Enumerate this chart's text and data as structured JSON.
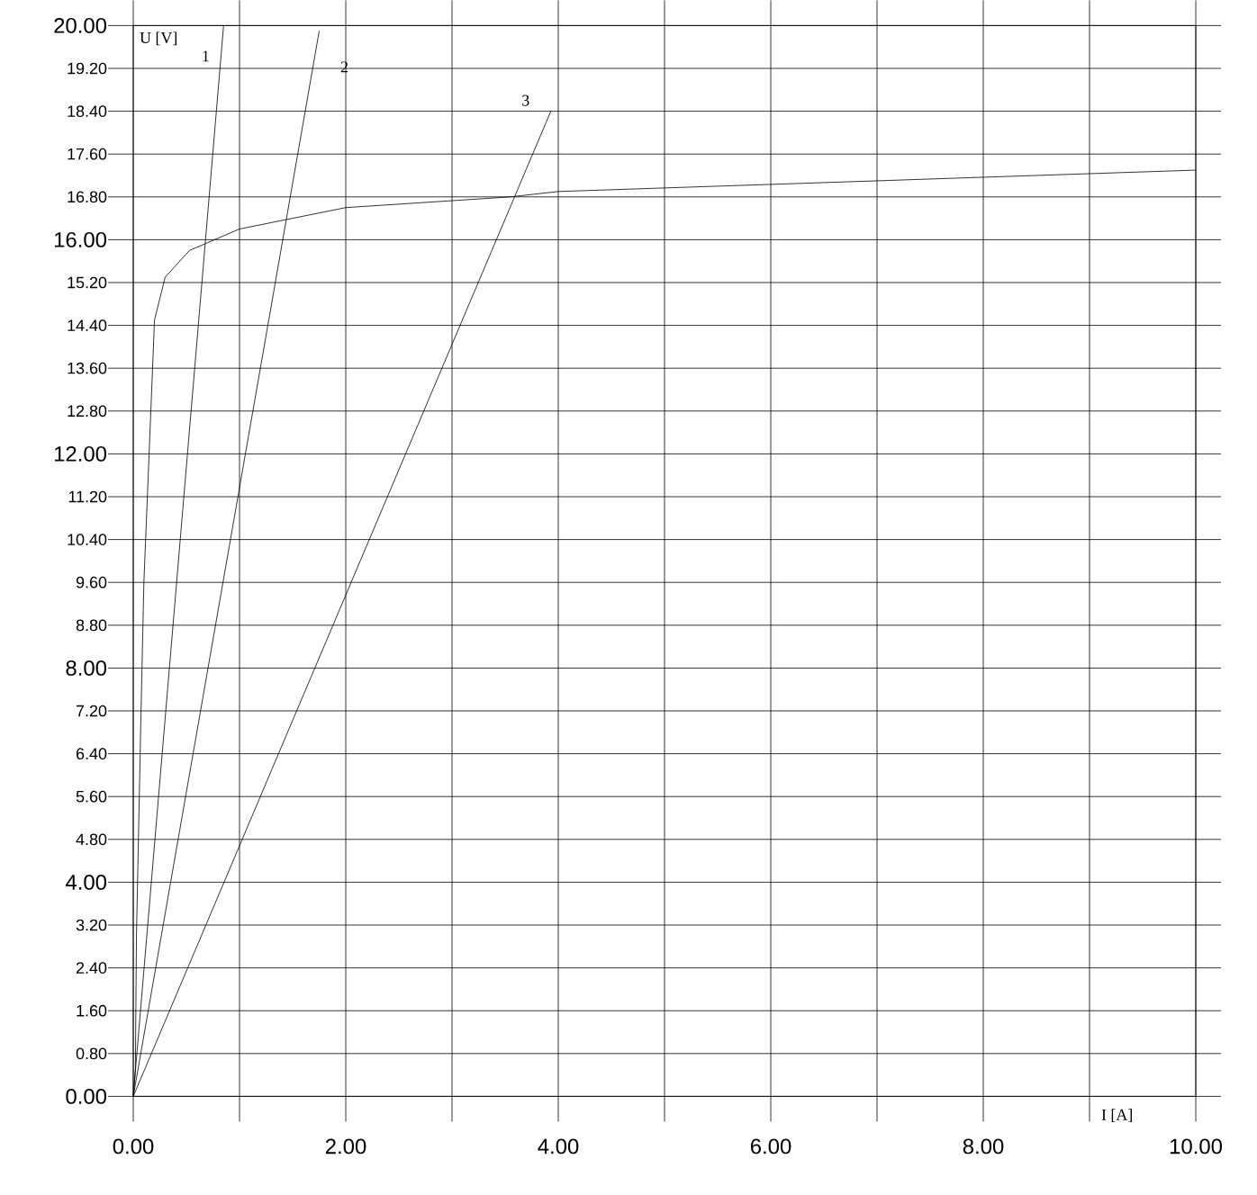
{
  "chart_data": {
    "type": "line",
    "xlabel": "I [A]",
    "ylabel": "U [V]",
    "xlim": [
      0,
      10
    ],
    "ylim": [
      0,
      20
    ],
    "xticks": [
      {
        "value": 0,
        "label": "0.00"
      },
      {
        "value": 1,
        "label": null
      },
      {
        "value": 2,
        "label": "2.00"
      },
      {
        "value": 3,
        "label": null
      },
      {
        "value": 4,
        "label": "4.00"
      },
      {
        "value": 5,
        "label": null
      },
      {
        "value": 6,
        "label": "6.00"
      },
      {
        "value": 7,
        "label": null
      },
      {
        "value": 8,
        "label": "8.00"
      },
      {
        "value": 9,
        "label": null
      },
      {
        "value": 10,
        "label": "10.00"
      }
    ],
    "yticks": [
      {
        "value": 0,
        "label": "0.00"
      },
      {
        "value": 0.8,
        "label": "0.80"
      },
      {
        "value": 1.6,
        "label": "1.60"
      },
      {
        "value": 2.4,
        "label": "2.40"
      },
      {
        "value": 3.2,
        "label": "3.20"
      },
      {
        "value": 4,
        "label": "4.00"
      },
      {
        "value": 4.8,
        "label": "4.80"
      },
      {
        "value": 5.6,
        "label": "5.60"
      },
      {
        "value": 6.4,
        "label": "6.40"
      },
      {
        "value": 7.2,
        "label": "7.20"
      },
      {
        "value": 8,
        "label": "8.00"
      },
      {
        "value": 8.8,
        "label": "8.80"
      },
      {
        "value": 9.6,
        "label": "9.60"
      },
      {
        "value": 10.4,
        "label": "10.40"
      },
      {
        "value": 11.2,
        "label": "11.20"
      },
      {
        "value": 12,
        "label": "12.00"
      },
      {
        "value": 12.8,
        "label": "12.80"
      },
      {
        "value": 13.6,
        "label": "13.60"
      },
      {
        "value": 14.4,
        "label": "14.40"
      },
      {
        "value": 15.2,
        "label": "15.20"
      },
      {
        "value": 16,
        "label": "16.00"
      },
      {
        "value": 16.8,
        "label": "16.80"
      },
      {
        "value": 17.6,
        "label": "17.60"
      },
      {
        "value": 18.4,
        "label": "18.40"
      },
      {
        "value": 19.2,
        "label": "19.20"
      },
      {
        "value": 20,
        "label": "20.00"
      }
    ],
    "grid": true,
    "marker": "none",
    "line_style": "solid",
    "series": [
      {
        "color": "#000000",
        "x": [
          0,
          0.02,
          0.03,
          0.07,
          0.1,
          0.2,
          0.3,
          0.53,
          1.0,
          2.0,
          3.55,
          4.0,
          7.0,
          10.0
        ],
        "values": [
          0,
          0.5,
          3.0,
          6.9,
          9.6,
          14.5,
          15.3,
          15.8,
          16.2,
          16.6,
          16.8,
          16.9,
          17.1,
          17.3
        ]
      },
      {
        "color": "#000000",
        "x": [
          0,
          0.85
        ],
        "values": [
          0,
          20
        ]
      },
      {
        "color": "#000000",
        "x": [
          0,
          1.75
        ],
        "values": [
          0,
          19.9
        ]
      },
      {
        "color": "#000000",
        "x": [
          0,
          3.93
        ],
        "values": [
          0,
          18.4
        ]
      }
    ],
    "annotations": [
      "1",
      "2",
      "3"
    ]
  }
}
